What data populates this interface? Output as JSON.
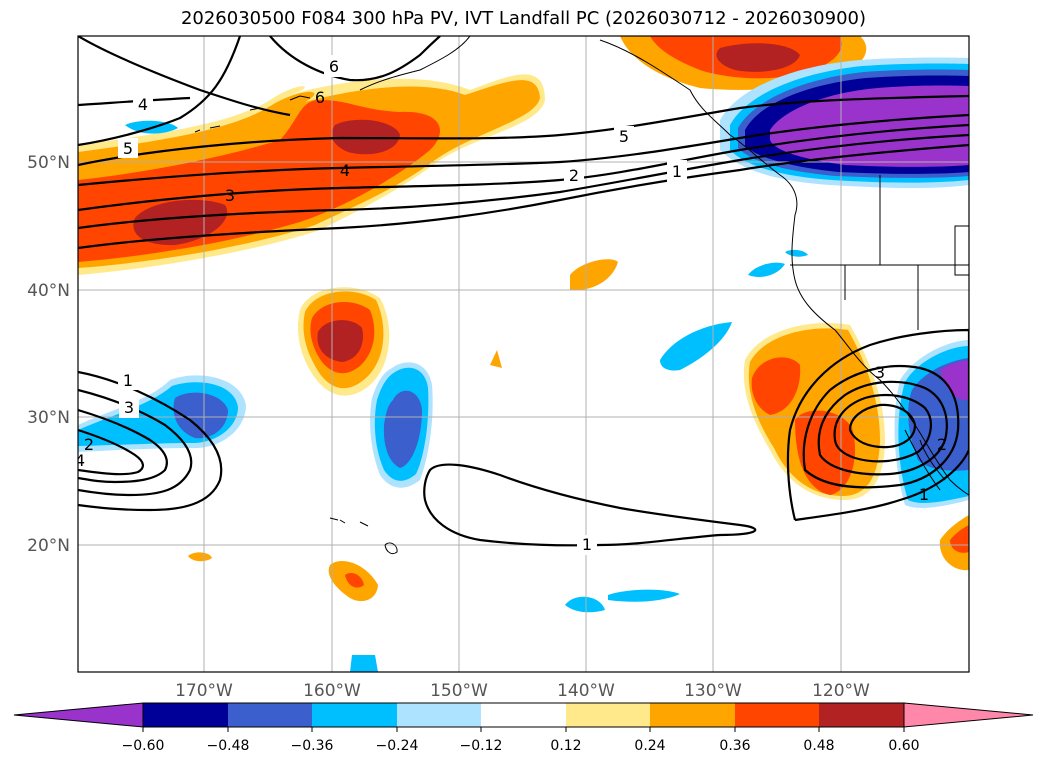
{
  "title": "2026030500 F084 300 hPa PV, IVT Landfall PC (2026030712 - 2026030900)",
  "map": {
    "lat_labels": [
      "50°N",
      "40°N",
      "30°N",
      "20°N"
    ],
    "lon_labels": [
      "170°W",
      "160°W",
      "150°W",
      "140°W",
      "130°W",
      "120°W"
    ],
    "contour_labels": [
      "4",
      "6",
      "6",
      "5",
      "5",
      "4",
      "3",
      "2",
      "1",
      "1",
      "3",
      "2",
      "4",
      "3",
      "2",
      "1",
      "1"
    ]
  },
  "colorbar": {
    "ticks": [
      "−0.60",
      "−0.48",
      "−0.36",
      "−0.24",
      "−0.12",
      "0.12",
      "0.24",
      "0.36",
      "0.48",
      "0.60"
    ],
    "colors": [
      "#9933cc",
      "#000099",
      "#3b5fcc",
      "#00bfff",
      "#aee3ff",
      "#ffffff",
      "#ffe98a",
      "#ffa500",
      "#ff4500",
      "#b22222",
      "#ff88aa"
    ]
  },
  "palette": {
    "purple": "#9933cc",
    "navy": "#000099",
    "blue": "#3b5fcc",
    "cyan": "#00bfff",
    "lightblue": "#aee3ff",
    "yellow": "#ffe98a",
    "orange": "#ffa500",
    "redorange": "#ff4500",
    "darkred": "#b22222",
    "pink": "#ff88aa"
  }
}
